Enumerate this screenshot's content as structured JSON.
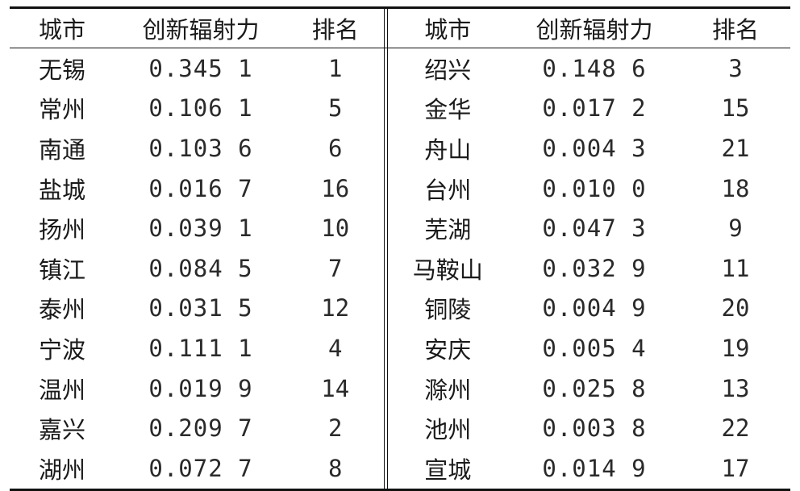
{
  "headers": {
    "left": {
      "city": "城市",
      "radiation": "创新辐射力",
      "rank": "排名"
    },
    "right": {
      "city": "城市",
      "radiation": "创新辐射力",
      "rank": "排名"
    }
  },
  "rows": [
    {
      "l_city": "无锡",
      "l_val": "0.345 1",
      "l_rank": "1",
      "r_city": "绍兴",
      "r_val": "0.148 6",
      "r_rank": "3"
    },
    {
      "l_city": "常州",
      "l_val": "0.106 1",
      "l_rank": "5",
      "r_city": "金华",
      "r_val": "0.017 2",
      "r_rank": "15"
    },
    {
      "l_city": "南通",
      "l_val": "0.103 6",
      "l_rank": "6",
      "r_city": "舟山",
      "r_val": "0.004 3",
      "r_rank": "21"
    },
    {
      "l_city": "盐城",
      "l_val": "0.016 7",
      "l_rank": "16",
      "r_city": "台州",
      "r_val": "0.010 0",
      "r_rank": "18"
    },
    {
      "l_city": "扬州",
      "l_val": "0.039 1",
      "l_rank": "10",
      "r_city": "芜湖",
      "r_val": "0.047 3",
      "r_rank": "9"
    },
    {
      "l_city": "镇江",
      "l_val": "0.084 5",
      "l_rank": "7",
      "r_city": "马鞍山",
      "r_val": "0.032 9",
      "r_rank": "11"
    },
    {
      "l_city": "泰州",
      "l_val": "0.031 5",
      "l_rank": "12",
      "r_city": "铜陵",
      "r_val": "0.004 9",
      "r_rank": "20"
    },
    {
      "l_city": "宁波",
      "l_val": "0.111 1",
      "l_rank": "4",
      "r_city": "安庆",
      "r_val": "0.005 4",
      "r_rank": "19"
    },
    {
      "l_city": "温州",
      "l_val": "0.019 9",
      "l_rank": "14",
      "r_city": "滁州",
      "r_val": "0.025 8",
      "r_rank": "13"
    },
    {
      "l_city": "嘉兴",
      "l_val": "0.209 7",
      "l_rank": "2",
      "r_city": "池州",
      "r_val": "0.003 8",
      "r_rank": "22"
    },
    {
      "l_city": "湖州",
      "l_val": "0.072 7",
      "l_rank": "8",
      "r_city": "宣城",
      "r_val": "0.014 9",
      "r_rank": "17"
    }
  ]
}
